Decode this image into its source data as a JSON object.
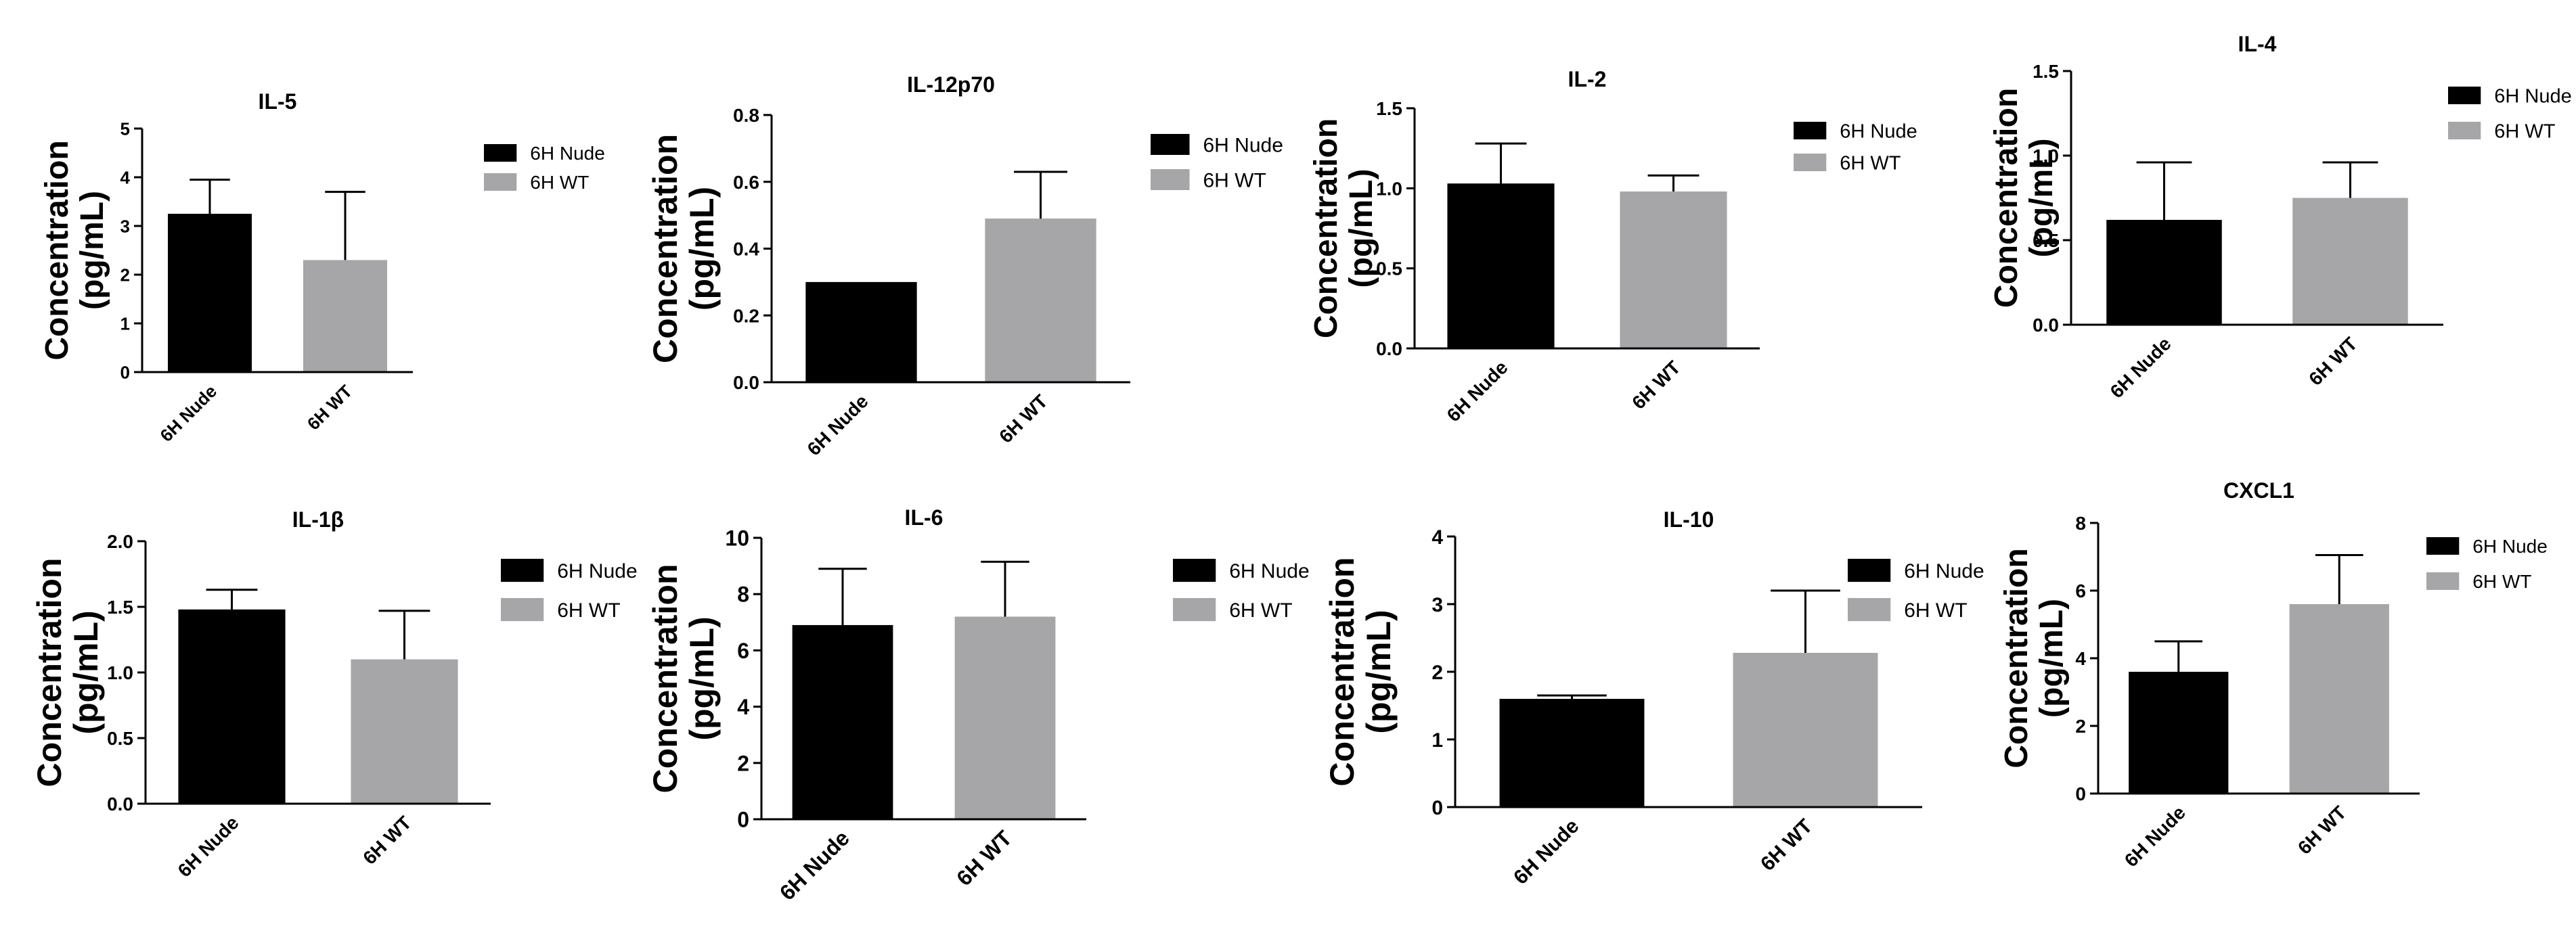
{
  "figure": {
    "legend_labels": [
      "6H Nude",
      "6H WT"
    ],
    "colors": {
      "nude": "#000000",
      "wt": "#a6a6a8",
      "axis": "#000000"
    }
  },
  "chart_data": [
    {
      "type": "bar",
      "title": "IL-5",
      "ylabel": "Concentration (pg/mL)",
      "ylabel_lines": [
        "Concentration",
        "(pg/mL)"
      ],
      "categories": [
        "6H Nude",
        "6H WT"
      ],
      "values": [
        3.25,
        2.3
      ],
      "errors": [
        0.7,
        1.4
      ],
      "ylim": [
        0,
        5
      ],
      "yticks": [
        "0",
        "1",
        "2",
        "3",
        "4",
        "5"
      ],
      "legend": [
        "6H Nude",
        "6H WT"
      ]
    },
    {
      "type": "bar",
      "title": "IL-12p70",
      "ylabel": "Concentration (pg/mL)",
      "ylabel_lines": [
        "Concentration",
        "(pg/mL)"
      ],
      "categories": [
        "6H Nude",
        "6H WT"
      ],
      "values": [
        0.3,
        0.49
      ],
      "errors": [
        0,
        0.14
      ],
      "ylim": [
        0,
        0.8
      ],
      "yticks": [
        "0.0",
        "0.2",
        "0.4",
        "0.6",
        "0.8"
      ],
      "legend": [
        "6H Nude",
        "6H WT"
      ]
    },
    {
      "type": "bar",
      "title": "IL-2",
      "ylabel": "Concentration (pg/mL)",
      "ylabel_lines": [
        "Concentration",
        "(pg/mL)"
      ],
      "categories": [
        "6H Nude",
        "6H WT"
      ],
      "values": [
        1.03,
        0.98
      ],
      "errors": [
        0.25,
        0.1
      ],
      "ylim": [
        0,
        1.5
      ],
      "yticks": [
        "0.0",
        "0.5",
        "1.0",
        "1.5"
      ],
      "legend": [
        "6H Nude",
        "6H WT"
      ]
    },
    {
      "type": "bar",
      "title": "IL-4",
      "ylabel": "Concentration (pg/mL)",
      "ylabel_lines": [
        "Concentration",
        "(pg/mL)"
      ],
      "categories": [
        "6H Nude",
        "6H WT"
      ],
      "values": [
        0.62,
        0.75
      ],
      "errors": [
        0.34,
        0.21
      ],
      "ylim": [
        0,
        1.5
      ],
      "yticks": [
        "0.0",
        "0.5",
        "1.0",
        "1.5"
      ],
      "legend": [
        "6H Nude",
        "6H WT"
      ]
    },
    {
      "type": "bar",
      "title": "IL-1β",
      "ylabel": "Concentration (pg/mL)",
      "ylabel_lines": [
        "Concentration",
        "(pg/mL)"
      ],
      "categories": [
        "6H Nude",
        "6H WT"
      ],
      "values": [
        1.48,
        1.1
      ],
      "errors": [
        0.15,
        0.37
      ],
      "ylim": [
        0,
        2.0
      ],
      "yticks": [
        "0.0",
        "0.5",
        "1.0",
        "1.5",
        "2.0"
      ],
      "legend": [
        "6H Nude",
        "6H WT"
      ]
    },
    {
      "type": "bar",
      "title": "IL-6",
      "ylabel": "Concentration (pg/mL)",
      "ylabel_lines": [
        "Concentration",
        "(pg/mL)"
      ],
      "categories": [
        "6H Nude",
        "6H WT"
      ],
      "values": [
        6.9,
        7.2
      ],
      "errors": [
        2.0,
        1.95
      ],
      "ylim": [
        0,
        10
      ],
      "yticks": [
        "0",
        "2",
        "4",
        "6",
        "8",
        "10"
      ],
      "legend": [
        "6H Nude",
        "6H WT"
      ]
    },
    {
      "type": "bar",
      "title": "IL-10",
      "ylabel": "Concentration (pg/mL)",
      "ylabel_lines": [
        "Concentration",
        "(pg/mL)"
      ],
      "categories": [
        "6H Nude",
        "6H WT"
      ],
      "values": [
        1.6,
        2.28
      ],
      "errors": [
        0.05,
        0.92
      ],
      "ylim": [
        0,
        4
      ],
      "yticks": [
        "0",
        "1",
        "2",
        "3",
        "4"
      ],
      "legend": [
        "6H Nude",
        "6H WT"
      ]
    },
    {
      "type": "bar",
      "title": "CXCL1",
      "ylabel": "Concentration (pg/mL)",
      "ylabel_lines": [
        "Concentration",
        "(pg/mL)"
      ],
      "categories": [
        "6H Nude",
        "6H WT"
      ],
      "values": [
        3.6,
        5.6
      ],
      "errors": [
        0.9,
        1.45
      ],
      "ylim": [
        0,
        8
      ],
      "yticks": [
        "0",
        "2",
        "4",
        "6",
        "8"
      ],
      "legend": [
        "6H Nude",
        "6H WT"
      ]
    }
  ]
}
